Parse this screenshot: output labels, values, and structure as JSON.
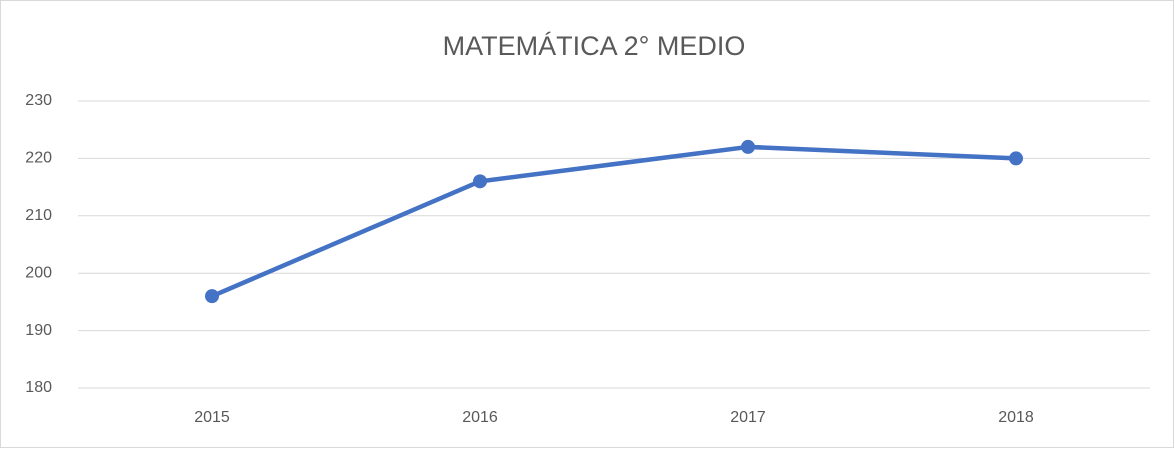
{
  "chart_data": {
    "type": "line",
    "title": "MATEMÁTICA 2° MEDIO",
    "categories": [
      "2015",
      "2016",
      "2017",
      "2018"
    ],
    "values": [
      196,
      216,
      222,
      220
    ],
    "color": "#4472c4",
    "ylim": [
      180,
      230
    ],
    "yticks": [
      180,
      190,
      200,
      210,
      220,
      230
    ],
    "grid": true
  }
}
